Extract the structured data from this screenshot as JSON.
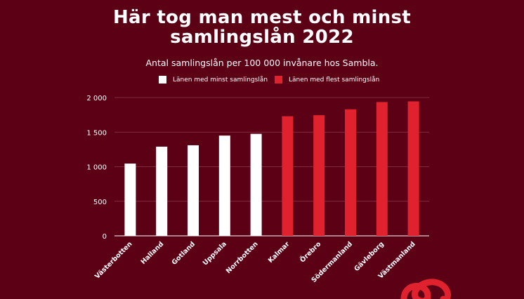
{
  "title_line1": "Här tog man mest och minst",
  "title_line2": "samlingslån 2022",
  "subtitle": "Antal samlingslån per 100 000 invånare hos Sambla.",
  "legend": [
    {
      "label": "Länen  med minst samlingslån",
      "color": "#ffffff"
    },
    {
      "label": "Länen med flest samlingslån",
      "color": "#e0212e"
    }
  ],
  "colors": {
    "background": "#5c0016",
    "minst": "#ffffff",
    "flest": "#e0212e",
    "grid": "#8a3a4c"
  },
  "logo_icon": "sambla-logo-icon",
  "chart_data": {
    "type": "bar",
    "title": "Här tog man mest och minst samlingslån 2022",
    "subtitle": "Antal samlingslån per 100 000 invånare hos Sambla.",
    "categories": [
      "Västerbotten",
      "Halland",
      "Gotland",
      "Uppsala",
      "Norrbotten",
      "Kalmar",
      "Örebro",
      "Södermanland",
      "Gävleborg",
      "Västmanland"
    ],
    "series": [
      {
        "name": "Länen  med minst samlingslån",
        "values": [
          1045,
          1290,
          1310,
          1450,
          1475,
          null,
          null,
          null,
          null,
          null
        ]
      },
      {
        "name": "Länen med flest samlingslån",
        "values": [
          null,
          null,
          null,
          null,
          null,
          1730,
          1745,
          1830,
          1935,
          1945
        ]
      }
    ],
    "ylim": [
      0,
      2000
    ],
    "yticks": [
      0,
      500,
      1000,
      1500,
      2000
    ],
    "ytick_labels": [
      "0",
      "500",
      "1 000",
      "1 500",
      "2 000"
    ],
    "grid": true,
    "legend_position": "top"
  }
}
